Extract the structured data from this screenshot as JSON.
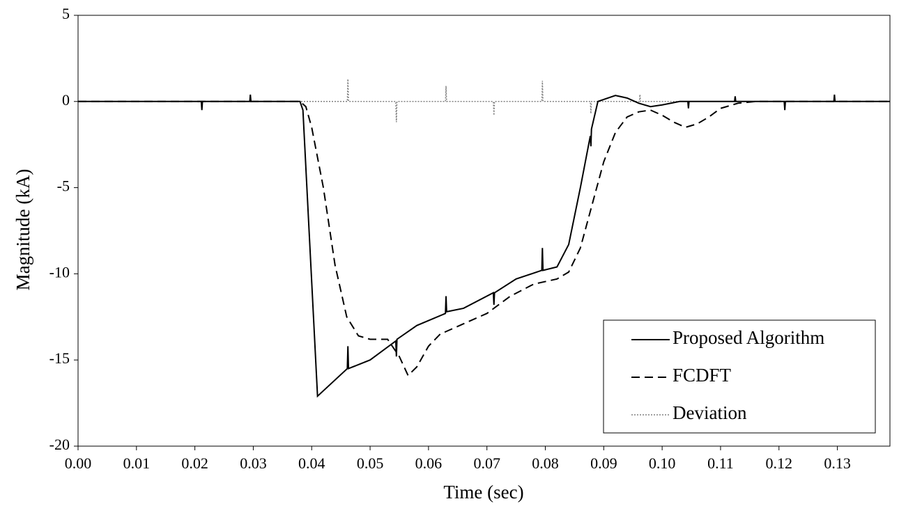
{
  "chart_data": {
    "type": "line",
    "xlabel": "Time (sec)",
    "ylabel": "Magnitude (kA)",
    "xlim": [
      0,
      0.139
    ],
    "ylim": [
      -20,
      5
    ],
    "xticks": [
      {
        "value": 0,
        "label": "0.00"
      },
      {
        "value": 0.01,
        "label": "0.01"
      },
      {
        "value": 0.02,
        "label": "0.02"
      },
      {
        "value": 0.03,
        "label": "0.03"
      },
      {
        "value": 0.04,
        "label": "0.04"
      },
      {
        "value": 0.05,
        "label": "0.05"
      },
      {
        "value": 0.06,
        "label": "0.06"
      },
      {
        "value": 0.07,
        "label": "0.07"
      },
      {
        "value": 0.08,
        "label": "0.08"
      },
      {
        "value": 0.09,
        "label": "0.09"
      },
      {
        "value": 0.1,
        "label": "0.10"
      },
      {
        "value": 0.11,
        "label": "0.11"
      },
      {
        "value": 0.12,
        "label": "0.12"
      },
      {
        "value": 0.13,
        "label": "0.13"
      }
    ],
    "yticks": [
      5,
      0,
      -5,
      -10,
      -15,
      -20
    ],
    "legend": "lower-right",
    "series": [
      {
        "name": "Proposed Algorithm",
        "color": "#000000",
        "dash": "solid",
        "x": [
          0,
          0.0211,
          0.0212,
          0.0213,
          0.0294,
          0.0295,
          0.0296,
          0.038,
          0.0385,
          0.041,
          0.0461,
          0.0462,
          0.0463,
          0.05,
          0.0544,
          0.0545,
          0.0546,
          0.058,
          0.0629,
          0.063,
          0.0631,
          0.066,
          0.0711,
          0.0712,
          0.0713,
          0.075,
          0.0794,
          0.0795,
          0.0796,
          0.082,
          0.084,
          0.086,
          0.0877,
          0.0878,
          0.0879,
          0.089,
          0.092,
          0.094,
          0.096,
          0.098,
          0.1,
          0.103,
          0.1044,
          0.1045,
          0.1046,
          0.1124,
          0.1125,
          0.1126,
          0.1209,
          0.121,
          0.1211,
          0.1294,
          0.1295,
          0.1296,
          0.139
        ],
        "values": [
          0,
          0,
          -0.5,
          0,
          0,
          0.4,
          0,
          0,
          -0.5,
          -17.1,
          -15.5,
          -14.2,
          -15.5,
          -15.0,
          -13.9,
          -14.8,
          -13.8,
          -13.0,
          -12.3,
          -11.3,
          -12.2,
          -12.0,
          -11.1,
          -11.8,
          -11.1,
          -10.3,
          -9.8,
          -8.5,
          -9.8,
          -9.6,
          -8.3,
          -5.0,
          -2.0,
          -2.6,
          -1.6,
          0,
          0.35,
          0.2,
          -0.1,
          -0.3,
          -0.2,
          0,
          0,
          -0.4,
          0,
          0,
          0.3,
          0,
          0,
          -0.5,
          0,
          0,
          0.4,
          0,
          0
        ]
      },
      {
        "name": "FCDFT",
        "color": "#000000",
        "dash": "dashed",
        "x": [
          0,
          0.038,
          0.039,
          0.04,
          0.042,
          0.044,
          0.046,
          0.048,
          0.05,
          0.053,
          0.055,
          0.0565,
          0.058,
          0.06,
          0.062,
          0.066,
          0.07,
          0.074,
          0.078,
          0.082,
          0.084,
          0.086,
          0.088,
          0.09,
          0.092,
          0.094,
          0.096,
          0.098,
          0.1,
          0.102,
          0.104,
          0.106,
          0.108,
          0.11,
          0.113,
          0.116,
          0.139
        ],
        "values": [
          0,
          0,
          -0.3,
          -1.5,
          -5,
          -9.5,
          -12.5,
          -13.6,
          -13.8,
          -13.8,
          -14.8,
          -15.9,
          -15.4,
          -14.2,
          -13.5,
          -12.9,
          -12.3,
          -11.3,
          -10.6,
          -10.3,
          -9.9,
          -8.5,
          -6,
          -3.5,
          -1.8,
          -0.9,
          -0.6,
          -0.5,
          -0.8,
          -1.2,
          -1.5,
          -1.3,
          -0.9,
          -0.4,
          -0.1,
          0,
          0
        ]
      },
      {
        "name": "Deviation",
        "color": "#808080",
        "dash": "dotted",
        "x": [
          0,
          0.0461,
          0.0462,
          0.0463,
          0.0544,
          0.0545,
          0.0546,
          0.0629,
          0.063,
          0.0631,
          0.0711,
          0.0712,
          0.0713,
          0.0794,
          0.0795,
          0.0796,
          0.0877,
          0.0878,
          0.0879,
          0.0961,
          0.0962,
          0.0963,
          0.139
        ],
        "values": [
          0,
          0,
          1.3,
          0,
          0,
          -1.2,
          0,
          0,
          0.9,
          0,
          0,
          -0.8,
          0,
          0,
          1.2,
          0,
          0,
          -0.7,
          0,
          0,
          0.4,
          0,
          0
        ]
      }
    ]
  }
}
